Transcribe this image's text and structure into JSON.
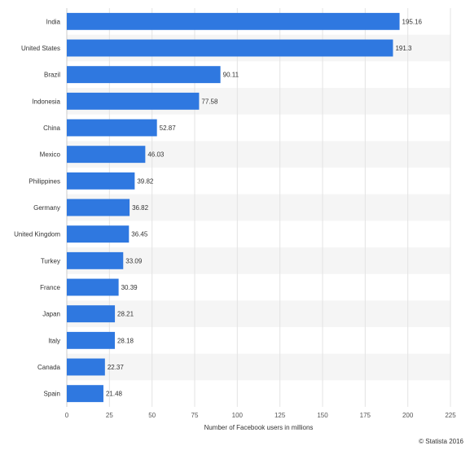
{
  "chart_data": {
    "type": "bar",
    "orientation": "horizontal",
    "categories": [
      "India",
      "United States",
      "Brazil",
      "Indonesia",
      "China",
      "Mexico",
      "Philippines",
      "Germany",
      "United Kingdom",
      "Turkey",
      "France",
      "Japan",
      "Italy",
      "Canada",
      "Spain"
    ],
    "values": [
      195.16,
      191.3,
      90.11,
      77.58,
      52.87,
      46.03,
      39.82,
      36.82,
      36.45,
      33.09,
      30.39,
      28.21,
      28.18,
      22.37,
      21.48
    ],
    "value_labels": [
      "195.16",
      "191.3",
      "90.11",
      "77.58",
      "52.87",
      "46.03",
      "39.82",
      "36.82",
      "36.45",
      "33.09",
      "30.39",
      "28.21",
      "28.18",
      "22.37",
      "21.48"
    ],
    "xlabel": "Number of Facebook users in millions",
    "ylabel": "",
    "xlim": [
      0,
      225
    ],
    "xticks": [
      0,
      25,
      50,
      75,
      100,
      125,
      150,
      175,
      200,
      225
    ],
    "grid": true,
    "legend": "none",
    "bar_color": "#2f78e0",
    "band_color": "#f5f5f5"
  },
  "credit": "© Statista 2016"
}
